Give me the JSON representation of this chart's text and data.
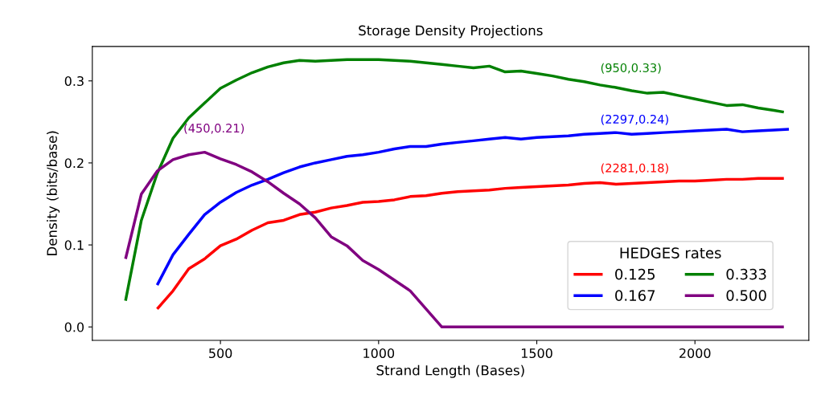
{
  "chart_data": {
    "type": "line",
    "title": "Storage Density Projections",
    "xlabel": "Strand Length (Bases)",
    "ylabel": "Density (bits/base)",
    "legend_title": "HEDGES rates",
    "legend": "bottom right",
    "grid": false,
    "xlim": [
      95,
      2360
    ],
    "xticks": [
      500,
      1000,
      1500,
      2000
    ],
    "ylim": [
      -0.0163,
      0.342
    ],
    "yticks": [
      {
        "value": 0,
        "label": "0.0"
      },
      0.1,
      0.2,
      0.3
    ],
    "series": [
      {
        "name": "0.125",
        "color": "#ff0000",
        "x": [
          300,
          350,
          400,
          450,
          500,
          550,
          600,
          650,
          700,
          750,
          800,
          850,
          900,
          950,
          1000,
          1050,
          1100,
          1150,
          1200,
          1250,
          1300,
          1350,
          1400,
          1450,
          1500,
          1550,
          1600,
          1650,
          1700,
          1750,
          1800,
          1850,
          1900,
          1950,
          2000,
          2050,
          2100,
          2150,
          2200,
          2250,
          2281
        ],
        "values": [
          0.022,
          0.044,
          0.071,
          0.083,
          0.099,
          0.107,
          0.118,
          0.127,
          0.13,
          0.137,
          0.14,
          0.145,
          0.148,
          0.152,
          0.153,
          0.155,
          0.159,
          0.16,
          0.163,
          0.165,
          0.166,
          0.167,
          0.169,
          0.17,
          0.171,
          0.172,
          0.173,
          0.175,
          0.176,
          0.174,
          0.175,
          0.176,
          0.177,
          0.178,
          0.178,
          0.179,
          0.18,
          0.18,
          0.181,
          0.181,
          0.181
        ]
      },
      {
        "name": "0.167",
        "color": "#0000ff",
        "x": [
          300,
          350,
          400,
          450,
          500,
          550,
          600,
          650,
          700,
          750,
          800,
          850,
          900,
          950,
          1000,
          1050,
          1100,
          1150,
          1200,
          1250,
          1300,
          1350,
          1400,
          1450,
          1500,
          1550,
          1600,
          1650,
          1700,
          1750,
          1800,
          1850,
          1900,
          1950,
          2000,
          2050,
          2100,
          2150,
          2200,
          2250,
          2297
        ],
        "values": [
          0.051,
          0.088,
          0.113,
          0.137,
          0.152,
          0.164,
          0.173,
          0.18,
          0.188,
          0.195,
          0.2,
          0.204,
          0.208,
          0.21,
          0.213,
          0.217,
          0.22,
          0.22,
          0.223,
          0.225,
          0.227,
          0.229,
          0.231,
          0.229,
          0.231,
          0.232,
          0.233,
          0.235,
          0.236,
          0.237,
          0.235,
          0.236,
          0.237,
          0.238,
          0.239,
          0.24,
          0.241,
          0.238,
          0.239,
          0.24,
          0.241
        ]
      },
      {
        "name": "0.333",
        "color": "#008000",
        "x": [
          200,
          250,
          300,
          350,
          400,
          450,
          500,
          550,
          600,
          650,
          700,
          750,
          800,
          850,
          900,
          950,
          1000,
          1050,
          1100,
          1150,
          1200,
          1250,
          1300,
          1350,
          1400,
          1450,
          1500,
          1550,
          1600,
          1650,
          1700,
          1750,
          1800,
          1850,
          1900,
          1950,
          2000,
          2050,
          2100,
          2150,
          2200,
          2250,
          2281
        ],
        "values": [
          0.032,
          0.13,
          0.187,
          0.23,
          0.255,
          0.273,
          0.291,
          0.301,
          0.31,
          0.317,
          0.322,
          0.325,
          0.324,
          0.325,
          0.326,
          0.326,
          0.326,
          0.325,
          0.324,
          0.322,
          0.32,
          0.318,
          0.316,
          0.318,
          0.311,
          0.312,
          0.309,
          0.306,
          0.302,
          0.299,
          0.295,
          0.292,
          0.288,
          0.285,
          0.286,
          0.282,
          0.278,
          0.274,
          0.27,
          0.271,
          0.267,
          0.264,
          0.262
        ]
      },
      {
        "name": "0.500",
        "color": "#800080",
        "x": [
          200,
          250,
          300,
          350,
          400,
          450,
          500,
          550,
          600,
          650,
          700,
          750,
          800,
          850,
          900,
          950,
          1000,
          1050,
          1100,
          1150,
          1200,
          2281
        ],
        "values": [
          0.083,
          0.162,
          0.19,
          0.204,
          0.21,
          0.213,
          0.205,
          0.198,
          0.189,
          0.177,
          0.163,
          0.15,
          0.133,
          0.11,
          0.099,
          0.081,
          0.07,
          0.057,
          0.044,
          0.022,
          0,
          0
        ]
      }
    ],
    "annotations": [
      "(2281,0.18)",
      "(2297,0.24)",
      "(950,0.33)",
      {
        "text": "(450,0.21)",
        "x": 450,
        "y": 0.21
      }
    ]
  }
}
